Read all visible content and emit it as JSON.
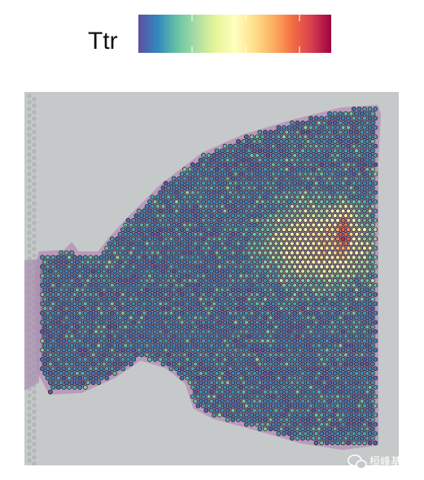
{
  "legend": {
    "title": "Ttr"
  },
  "watermark": {
    "text": "桓峰基因"
  }
}
